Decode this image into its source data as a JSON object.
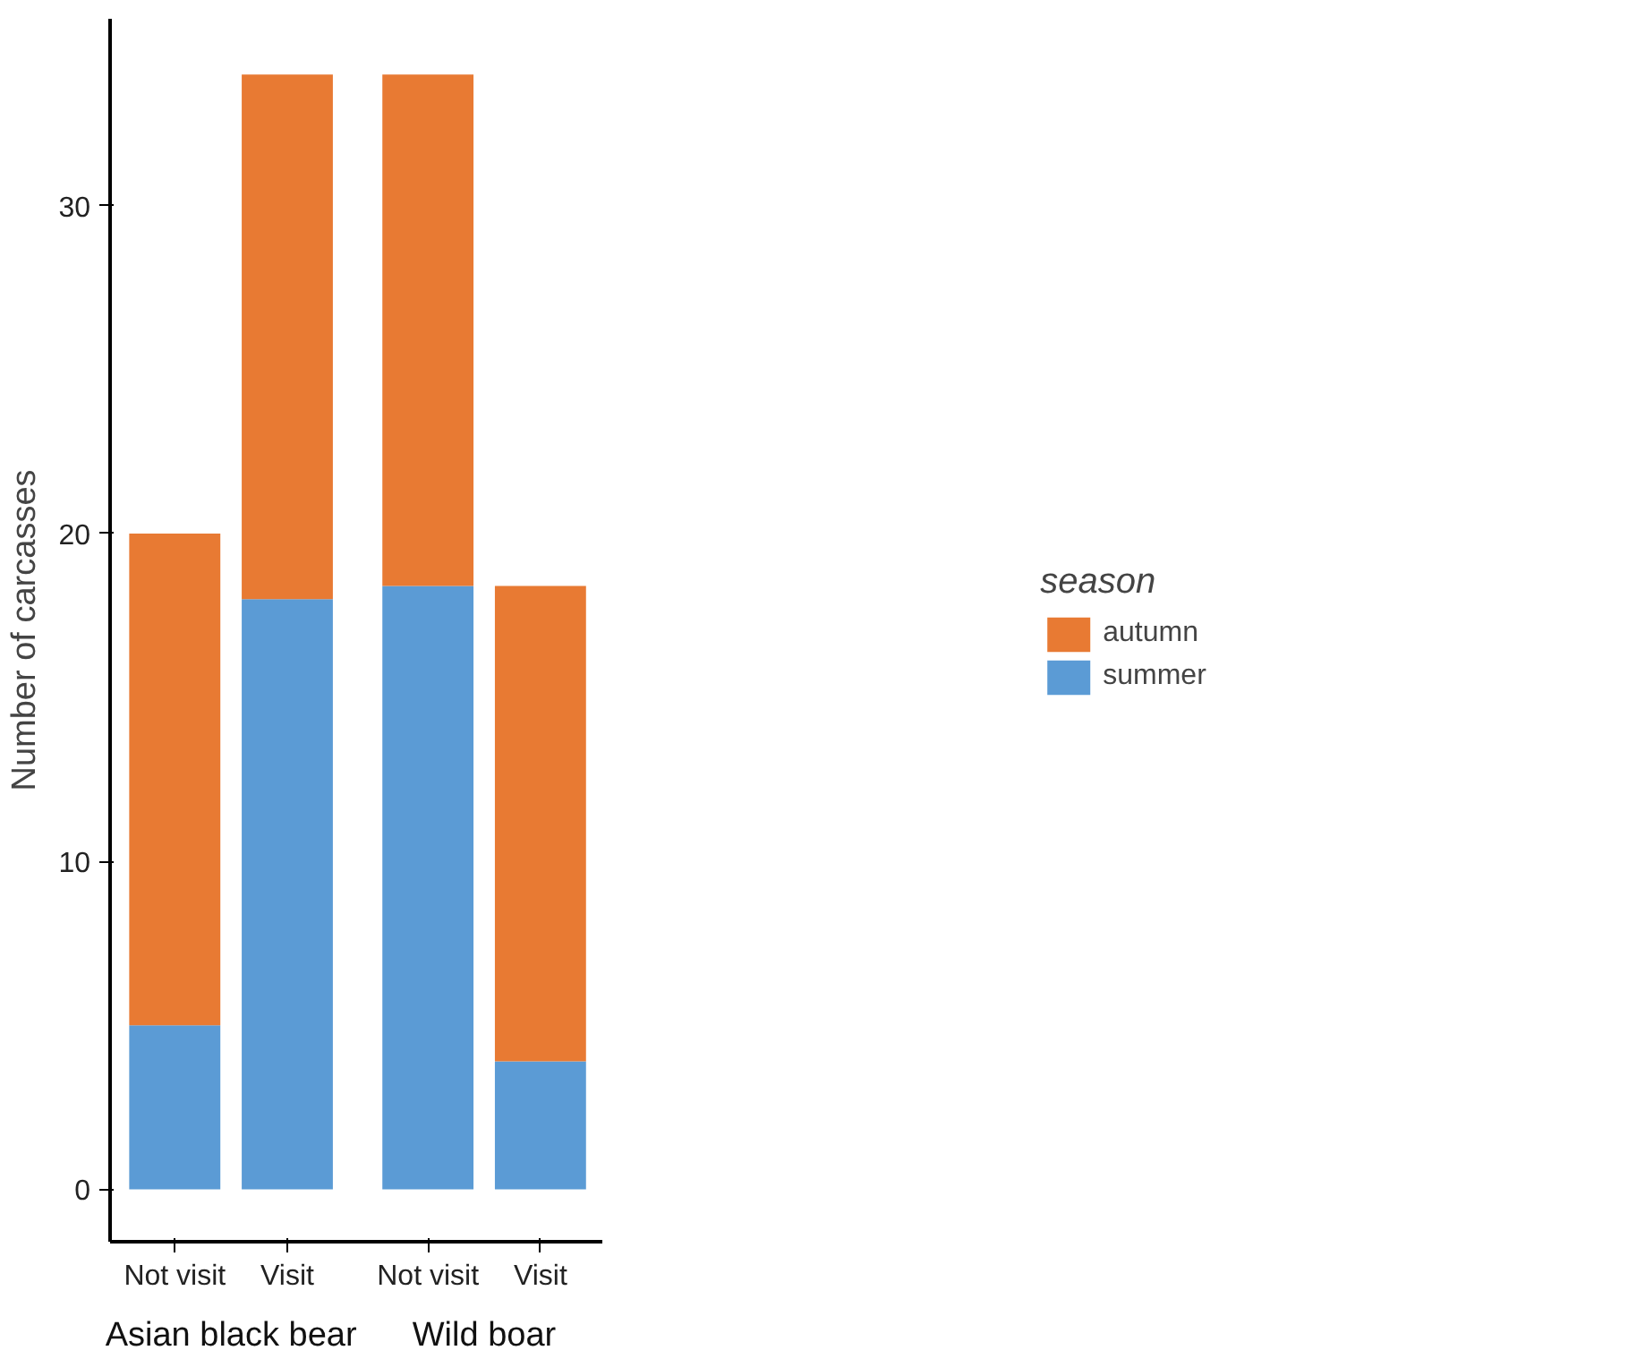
{
  "chart_data": {
    "type": "bar",
    "stacked": true,
    "ylabel": "Number of carcasses",
    "legend_title": "season",
    "categories": [
      "Not visit",
      "Visit",
      "Not visit",
      "Visit"
    ],
    "series": [
      {
        "name": "summer",
        "color": "#5b9bd5",
        "values": [
          5,
          18,
          18.4,
          3.9
        ]
      },
      {
        "name": "autumn",
        "color": "#e87a33",
        "values": [
          15,
          16,
          15.6,
          14.5
        ]
      }
    ],
    "annotations": [
      "Asian black bear",
      "Wild boar"
    ],
    "ylim": [
      -1.6,
      35.7
    ],
    "yticks": [
      0,
      10,
      20,
      30
    ],
    "grid": false,
    "legend": "right"
  }
}
